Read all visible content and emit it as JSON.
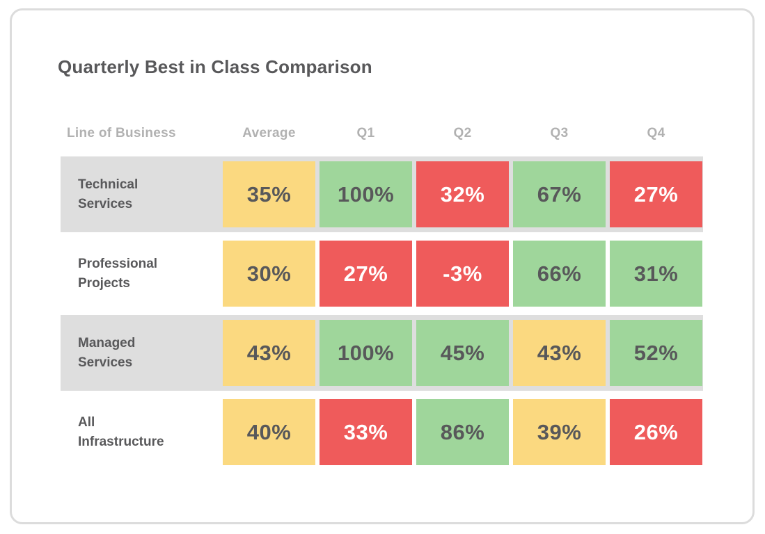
{
  "colors": {
    "yellow": "#fbd980",
    "green": "#9fd69b",
    "red": "#ef5b5b",
    "stripe": "#dedede",
    "text_dark": "#58585a",
    "text_light": "#ffffff",
    "header_gray": "#b1b1b1",
    "card_border": "#dcdcdc"
  },
  "chart_data": {
    "type": "heatmap",
    "title": "Quarterly Best in Class Comparison",
    "row_label_header": "Line of Business",
    "columns": [
      "Average",
      "Q1",
      "Q2",
      "Q3",
      "Q4"
    ],
    "rows": [
      "Technical Services",
      "Professional Projects",
      "Managed Services",
      "All Infrastructure"
    ],
    "values_percent": [
      [
        35,
        100,
        32,
        67,
        27
      ],
      [
        30,
        27,
        -3,
        66,
        31
      ],
      [
        43,
        100,
        45,
        43,
        52
      ],
      [
        40,
        33,
        86,
        39,
        26
      ]
    ],
    "cell_colors": [
      [
        "yellow",
        "green",
        "red",
        "green",
        "red"
      ],
      [
        "yellow",
        "red",
        "red",
        "green",
        "green"
      ],
      [
        "yellow",
        "green",
        "green",
        "yellow",
        "green"
      ],
      [
        "yellow",
        "red",
        "green",
        "yellow",
        "red"
      ]
    ],
    "value_suffix": "%",
    "layout": {
      "striped_row_indexes": [
        0,
        2
      ],
      "legend": "none",
      "grid": "off"
    }
  }
}
